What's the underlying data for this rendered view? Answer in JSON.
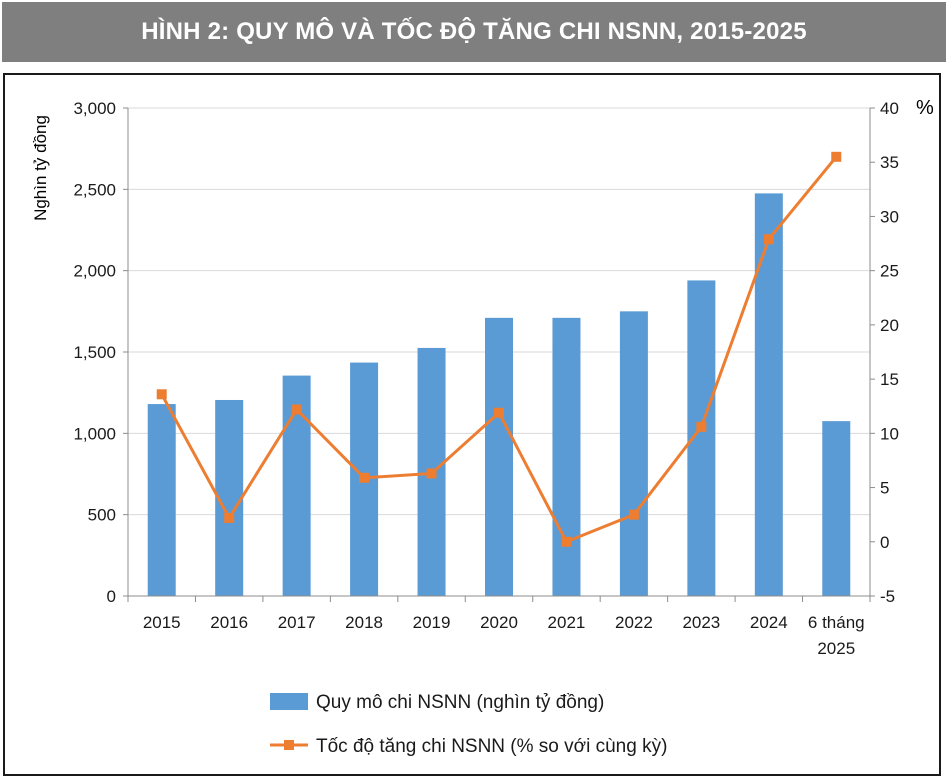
{
  "header": {
    "title": "HÌNH 2: QUY MÔ VÀ TỐC ĐỘ TĂNG CHI NSNN, 2015-2025"
  },
  "chart_data": {
    "type": "bar",
    "categories": [
      "2015",
      "2016",
      "2017",
      "2018",
      "2019",
      "2020",
      "2021",
      "2022",
      "2023",
      "2024",
      [
        "6 tháng",
        "2025"
      ]
    ],
    "series": [
      {
        "name": "Quy mô chi NSNN (nghìn tỷ đồng)",
        "type": "bar",
        "axis": "left",
        "values": [
          1180,
          1205,
          1355,
          1435,
          1525,
          1710,
          1710,
          1750,
          1940,
          2475,
          1075
        ],
        "color": "#5b9bd5"
      },
      {
        "name": "Tốc độ tăng chi NSNN (% so với cùng kỳ)",
        "type": "line",
        "axis": "right",
        "values": [
          13.6,
          2.2,
          12.2,
          5.9,
          6.3,
          11.9,
          0.0,
          2.5,
          10.6,
          27.9,
          35.5
        ],
        "color": "#ed7d31"
      }
    ],
    "ylabel": "Nghìn tỷ đồng",
    "y2label": "%",
    "ylim": [
      0,
      3000
    ],
    "y2lim": [
      -5,
      40
    ],
    "yticks": [
      "0",
      "500",
      "1,000",
      "1,500",
      "2,000",
      "2,500",
      "3,000"
    ],
    "y2ticks": [
      "-5",
      "0",
      "5",
      "10",
      "15",
      "20",
      "25",
      "30",
      "35",
      "40"
    ],
    "grid": true,
    "legend_position": "bottom"
  }
}
